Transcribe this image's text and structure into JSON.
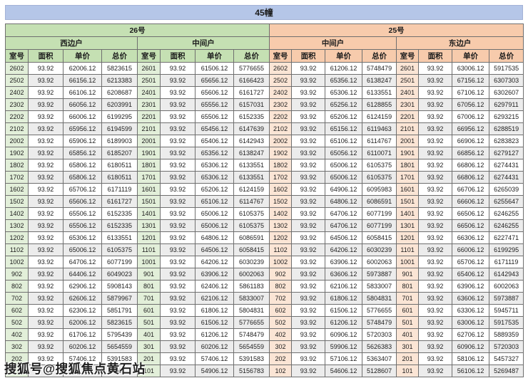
{
  "title": "45幢",
  "watermark": "搜狐号@搜狐焦点黄石站",
  "buildings": [
    {
      "label": "26号"
    },
    {
      "label": "25号"
    }
  ],
  "units": [
    "西边户",
    "中间户",
    "中间户",
    "东边户"
  ],
  "column_headers": [
    "室号",
    "面积",
    "单价",
    "总价"
  ],
  "colors": {
    "title_bg": "#b5c6e8",
    "building26_header": "#c5e0b3",
    "building26_room_tint": "#e2efd9",
    "building25_header": "#f7cbac",
    "building25_room_tint": "#fbe5d5",
    "row_alt": "#ececec",
    "border": "#6f6f6f"
  },
  "rows": [
    [
      [
        "2602",
        "93.92",
        "62006.12",
        "5823615"
      ],
      [
        "2601",
        "93.92",
        "61506.12",
        "5776655"
      ],
      [
        "2602",
        "93.92",
        "61206.12",
        "5748479"
      ],
      [
        "2601",
        "93.92",
        "63006.12",
        "5917535"
      ]
    ],
    [
      [
        "2502",
        "93.92",
        "66156.12",
        "6213383"
      ],
      [
        "2501",
        "93.92",
        "65656.12",
        "6166423"
      ],
      [
        "2502",
        "93.92",
        "65356.12",
        "6138247"
      ],
      [
        "2501",
        "93.92",
        "67156.12",
        "6307303"
      ]
    ],
    [
      [
        "2402",
        "93.92",
        "66106.12",
        "6208687"
      ],
      [
        "2401",
        "93.92",
        "65606.12",
        "6161727"
      ],
      [
        "2402",
        "93.92",
        "65306.12",
        "6133551"
      ],
      [
        "2401",
        "93.92",
        "67106.12",
        "6302607"
      ]
    ],
    [
      [
        "2302",
        "93.92",
        "66056.12",
        "6203991"
      ],
      [
        "2301",
        "93.92",
        "65556.12",
        "6157031"
      ],
      [
        "2302",
        "93.92",
        "65256.12",
        "6128855"
      ],
      [
        "2301",
        "93.92",
        "67056.12",
        "6297911"
      ]
    ],
    [
      [
        "2202",
        "93.92",
        "66006.12",
        "6199295"
      ],
      [
        "2201",
        "93.92",
        "65506.12",
        "6152335"
      ],
      [
        "2202",
        "93.92",
        "65206.12",
        "6124159"
      ],
      [
        "2201",
        "93.92",
        "67006.12",
        "6293215"
      ]
    ],
    [
      [
        "2102",
        "93.92",
        "65956.12",
        "6194599"
      ],
      [
        "2101",
        "93.92",
        "65456.12",
        "6147639"
      ],
      [
        "2102",
        "93.92",
        "65156.12",
        "6119463"
      ],
      [
        "2101",
        "93.92",
        "66956.12",
        "6288519"
      ]
    ],
    [
      [
        "2002",
        "93.92",
        "65906.12",
        "6189903"
      ],
      [
        "2001",
        "93.92",
        "65406.12",
        "6142943"
      ],
      [
        "2002",
        "93.92",
        "65106.12",
        "6114767"
      ],
      [
        "2001",
        "93.92",
        "66906.12",
        "6283823"
      ]
    ],
    [
      [
        "1902",
        "93.92",
        "65856.12",
        "6185207"
      ],
      [
        "1901",
        "93.92",
        "65356.12",
        "6138247"
      ],
      [
        "1902",
        "93.92",
        "65056.12",
        "6110071"
      ],
      [
        "1901",
        "93.92",
        "66856.12",
        "6279127"
      ]
    ],
    [
      [
        "1802",
        "93.92",
        "65806.12",
        "6180511"
      ],
      [
        "1801",
        "93.92",
        "65306.12",
        "6133551"
      ],
      [
        "1802",
        "93.92",
        "65006.12",
        "6105375"
      ],
      [
        "1801",
        "93.92",
        "66806.12",
        "6274431"
      ]
    ],
    [
      [
        "1702",
        "93.92",
        "65806.12",
        "6180511"
      ],
      [
        "1701",
        "93.92",
        "65306.12",
        "6133551"
      ],
      [
        "1702",
        "93.92",
        "65006.12",
        "6105375"
      ],
      [
        "1701",
        "93.92",
        "66806.12",
        "6274431"
      ]
    ],
    [
      [
        "1602",
        "93.92",
        "65706.12",
        "6171119"
      ],
      [
        "1601",
        "93.92",
        "65206.12",
        "6124159"
      ],
      [
        "1602",
        "93.92",
        "64906.12",
        "6095983"
      ],
      [
        "1601",
        "93.92",
        "66706.12",
        "6265039"
      ]
    ],
    [
      [
        "1502",
        "93.92",
        "65606.12",
        "6161727"
      ],
      [
        "1501",
        "93.92",
        "65106.12",
        "6114767"
      ],
      [
        "1502",
        "93.92",
        "64806.12",
        "6086591"
      ],
      [
        "1501",
        "93.92",
        "66606.12",
        "6255647"
      ]
    ],
    [
      [
        "1402",
        "93.92",
        "65506.12",
        "6152335"
      ],
      [
        "1401",
        "93.92",
        "65006.12",
        "6105375"
      ],
      [
        "1402",
        "93.92",
        "64706.12",
        "6077199"
      ],
      [
        "1401",
        "93.92",
        "66506.12",
        "6246255"
      ]
    ],
    [
      [
        "1302",
        "93.92",
        "65506.12",
        "6152335"
      ],
      [
        "1301",
        "93.92",
        "65006.12",
        "6105375"
      ],
      [
        "1302",
        "93.92",
        "64706.12",
        "6077199"
      ],
      [
        "1301",
        "93.92",
        "66506.12",
        "6246255"
      ]
    ],
    [
      [
        "1202",
        "93.92",
        "65306.12",
        "6133551"
      ],
      [
        "1201",
        "93.92",
        "64806.12",
        "6086591"
      ],
      [
        "1202",
        "93.92",
        "64506.12",
        "6058415"
      ],
      [
        "1201",
        "93.92",
        "66306.12",
        "6227471"
      ]
    ],
    [
      [
        "1102",
        "93.92",
        "65006.12",
        "6105375"
      ],
      [
        "1101",
        "93.92",
        "64506.12",
        "6058415"
      ],
      [
        "1102",
        "93.92",
        "64206.12",
        "6030239"
      ],
      [
        "1101",
        "93.92",
        "66006.12",
        "6199295"
      ]
    ],
    [
      [
        "1002",
        "93.92",
        "64706.12",
        "6077199"
      ],
      [
        "1001",
        "93.92",
        "64206.12",
        "6030239"
      ],
      [
        "1002",
        "93.92",
        "63906.12",
        "6002063"
      ],
      [
        "1001",
        "93.92",
        "65706.12",
        "6171119"
      ]
    ],
    [
      [
        "902",
        "93.92",
        "64406.12",
        "6049023"
      ],
      [
        "901",
        "93.92",
        "63906.12",
        "6002063"
      ],
      [
        "902",
        "93.92",
        "63606.12",
        "5973887"
      ],
      [
        "901",
        "93.92",
        "65406.12",
        "6142943"
      ]
    ],
    [
      [
        "802",
        "93.92",
        "62906.12",
        "5908143"
      ],
      [
        "801",
        "93.92",
        "62406.12",
        "5861183"
      ],
      [
        "802",
        "93.92",
        "62106.12",
        "5833007"
      ],
      [
        "801",
        "93.92",
        "63906.12",
        "6002063"
      ]
    ],
    [
      [
        "702",
        "93.92",
        "62606.12",
        "5879967"
      ],
      [
        "701",
        "93.92",
        "62106.12",
        "5833007"
      ],
      [
        "702",
        "93.92",
        "61806.12",
        "5804831"
      ],
      [
        "701",
        "93.92",
        "63606.12",
        "5973887"
      ]
    ],
    [
      [
        "602",
        "93.92",
        "62306.12",
        "5851791"
      ],
      [
        "601",
        "93.92",
        "61806.12",
        "5804831"
      ],
      [
        "602",
        "93.92",
        "61506.12",
        "5776655"
      ],
      [
        "601",
        "93.92",
        "63306.12",
        "5945711"
      ]
    ],
    [
      [
        "502",
        "93.92",
        "62006.12",
        "5823615"
      ],
      [
        "501",
        "93.92",
        "61506.12",
        "5776655"
      ],
      [
        "502",
        "93.92",
        "61206.12",
        "5748479"
      ],
      [
        "501",
        "93.92",
        "63006.12",
        "5917535"
      ]
    ],
    [
      [
        "402",
        "93.92",
        "61706.12",
        "5795439"
      ],
      [
        "401",
        "93.92",
        "61206.12",
        "5748479"
      ],
      [
        "402",
        "93.92",
        "60906.12",
        "5720303"
      ],
      [
        "401",
        "93.92",
        "62706.12",
        "5889359"
      ]
    ],
    [
      [
        "302",
        "93.92",
        "60206.12",
        "5654559"
      ],
      [
        "301",
        "93.92",
        "60206.12",
        "5654559"
      ],
      [
        "302",
        "93.92",
        "59906.12",
        "5626383"
      ],
      [
        "301",
        "93.92",
        "60906.12",
        "5720303"
      ]
    ],
    [
      [
        "202",
        "93.92",
        "57406.12",
        "5391583"
      ],
      [
        "201",
        "93.92",
        "57406.12",
        "5391583"
      ],
      [
        "202",
        "93.92",
        "57106.12",
        "5363407"
      ],
      [
        "201",
        "93.92",
        "58106.12",
        "5457327"
      ]
    ],
    [
      [
        "",
        "",
        "",
        "743"
      ],
      [
        "101",
        "93.92",
        "54906.12",
        "5156783"
      ],
      [
        "102",
        "93.92",
        "54606.12",
        "5128607"
      ],
      [
        "101",
        "93.92",
        "56106.12",
        "5269487"
      ]
    ]
  ]
}
